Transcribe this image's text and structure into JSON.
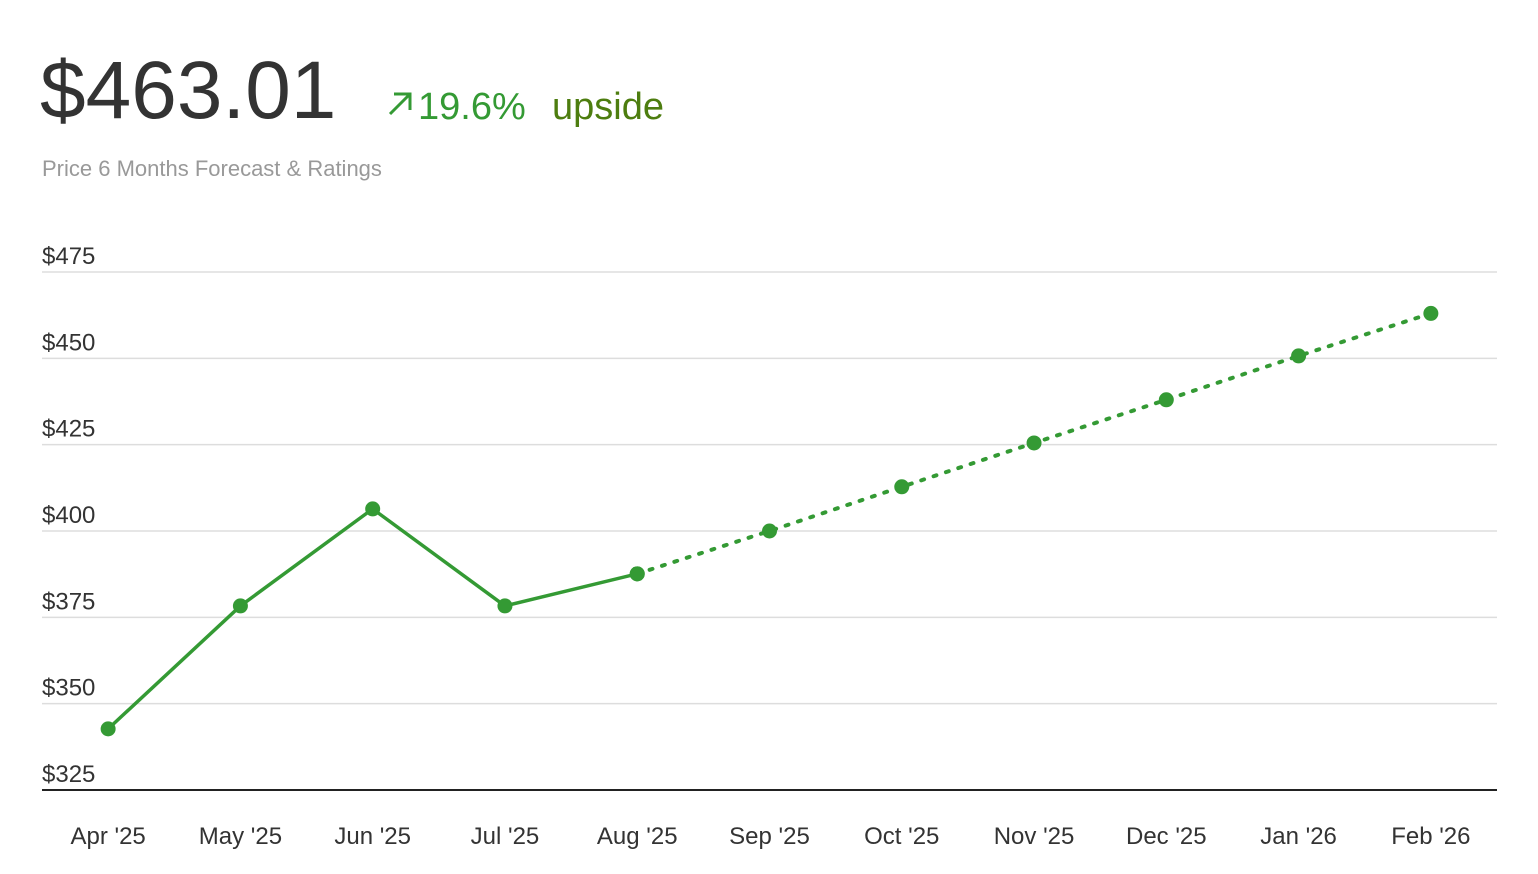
{
  "chart_data": {
    "type": "line",
    "title": "$463.01",
    "change": "19.6%",
    "change_label": "upside",
    "subtitle": "Price 6 Months Forecast & Ratings",
    "categories": [
      "Apr '25",
      "May '25",
      "Jun '25",
      "Jul '25",
      "Aug '25",
      "Sep '25",
      "Oct '25",
      "Nov '25",
      "Dec '25",
      "Jan '26",
      "Feb '26"
    ],
    "series": [
      {
        "color": "#349a34",
        "style": "solid",
        "values": [
          342.7,
          378.3,
          406.4,
          378.3,
          387.6,
          null,
          null,
          null,
          null,
          null,
          null
        ]
      },
      {
        "color": "#349a34",
        "style": "dotted",
        "values": [
          null,
          null,
          null,
          null,
          387.6,
          400.0,
          412.8,
          425.5,
          438.0,
          450.7,
          463.01
        ]
      }
    ],
    "ylim": [
      325,
      475
    ],
    "yticks": [
      {
        "value": 325,
        "label": "$325"
      },
      {
        "value": 350,
        "label": "$350"
      },
      {
        "value": 375,
        "label": "$375"
      },
      {
        "value": 400,
        "label": "$400"
      },
      {
        "value": 425,
        "label": "$425"
      },
      {
        "value": 450,
        "label": "$450"
      },
      {
        "value": 475,
        "label": "$475"
      }
    ],
    "grid": true
  }
}
